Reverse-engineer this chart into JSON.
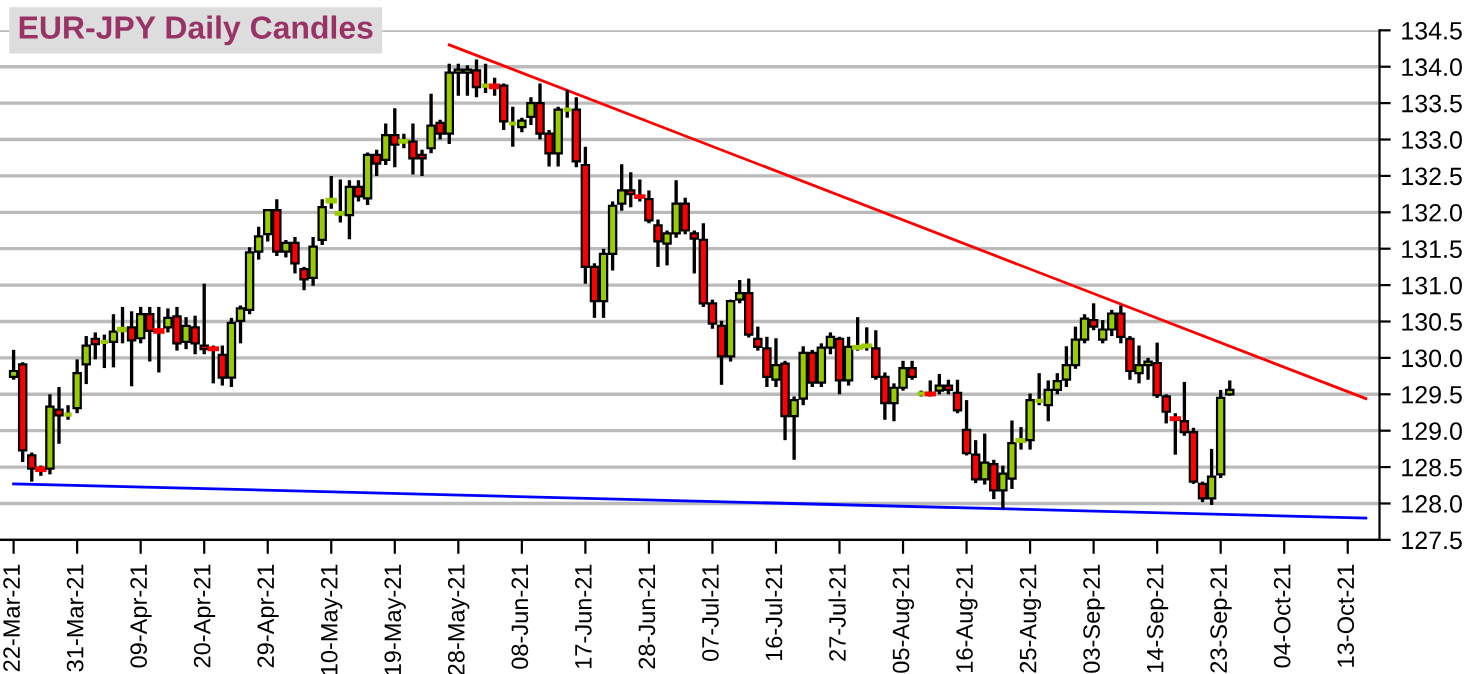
{
  "chart_data": {
    "type": "candlestick",
    "title": "EUR-JPY Daily Candles",
    "categories": [
      "22-Mar-21",
      null,
      null,
      null,
      null,
      null,
      null,
      "31-Mar-21",
      null,
      null,
      null,
      null,
      null,
      null,
      "09-Apr-21",
      null,
      null,
      null,
      null,
      null,
      null,
      "20-Apr-21",
      null,
      null,
      null,
      null,
      null,
      null,
      "29-Apr-21",
      null,
      null,
      null,
      null,
      null,
      null,
      "10-May-21",
      null,
      null,
      null,
      null,
      null,
      null,
      "19-May-21",
      null,
      null,
      null,
      null,
      null,
      null,
      "28-May-21",
      null,
      null,
      null,
      null,
      null,
      null,
      "08-Jun-21",
      null,
      null,
      null,
      null,
      null,
      null,
      "17-Jun-21",
      null,
      null,
      null,
      null,
      null,
      null,
      "28-Jun-21",
      null,
      null,
      null,
      null,
      null,
      null,
      "07-Jul-21",
      null,
      null,
      null,
      null,
      null,
      null,
      "16-Jul-21",
      null,
      null,
      null,
      null,
      null,
      null,
      "27-Jul-21",
      null,
      null,
      null,
      null,
      null,
      null,
      "05-Aug-21",
      null,
      null,
      null,
      null,
      null,
      null,
      "16-Aug-21",
      null,
      null,
      null,
      null,
      null,
      null,
      "25-Aug-21",
      null,
      null,
      null,
      null,
      null,
      null,
      "03-Sep-21",
      null,
      null,
      null,
      null,
      null,
      null,
      "14-Sep-21",
      null,
      null,
      null,
      null,
      null,
      null,
      "23-Sep-21",
      null,
      null,
      null,
      null,
      null,
      null,
      "04-Oct-21",
      null,
      null,
      null,
      null,
      null,
      null,
      "13-Oct-21",
      null,
      null,
      null
    ],
    "ohlc": [
      [
        129.74,
        130.11,
        129.7,
        129.82
      ],
      [
        129.91,
        129.94,
        128.57,
        128.73
      ],
      [
        128.66,
        128.7,
        128.3,
        128.48
      ],
      [
        128.48,
        128.52,
        128.38,
        128.46
      ],
      [
        128.48,
        129.5,
        128.4,
        129.33
      ],
      [
        129.29,
        129.6,
        128.82,
        129.21
      ],
      [
        129.22,
        129.35,
        129.15,
        129.22
      ],
      [
        129.31,
        129.98,
        129.24,
        129.79
      ],
      [
        129.91,
        130.3,
        129.64,
        130.17
      ],
      [
        130.26,
        130.35,
        129.98,
        130.19
      ],
      [
        130.22,
        130.32,
        129.86,
        130.22
      ],
      [
        130.22,
        130.6,
        129.87,
        130.36
      ],
      [
        130.38,
        130.7,
        130.2,
        130.4
      ],
      [
        130.42,
        130.64,
        129.61,
        130.24
      ],
      [
        130.27,
        130.7,
        130.2,
        130.6
      ],
      [
        130.6,
        130.7,
        129.95,
        130.37
      ],
      [
        130.38,
        130.7,
        129.8,
        130.36
      ],
      [
        130.42,
        130.68,
        130.35,
        130.55
      ],
      [
        130.57,
        130.7,
        130.1,
        130.2
      ],
      [
        130.22,
        130.56,
        130.12,
        130.44
      ],
      [
        130.42,
        130.58,
        130.05,
        130.2
      ],
      [
        130.17,
        131.02,
        130.05,
        130.12
      ],
      [
        130.13,
        130.17,
        129.65,
        130.12
      ],
      [
        130.04,
        130.17,
        129.62,
        129.73
      ],
      [
        129.73,
        130.55,
        129.6,
        130.48
      ],
      [
        130.51,
        130.72,
        130.2,
        130.68
      ],
      [
        130.66,
        131.52,
        130.6,
        131.45
      ],
      [
        131.46,
        131.8,
        131.35,
        131.67
      ],
      [
        131.7,
        132.03,
        131.6,
        132.03
      ],
      [
        132.03,
        132.18,
        131.4,
        131.46
      ],
      [
        131.46,
        131.62,
        131.38,
        131.58
      ],
      [
        131.58,
        131.66,
        131.16,
        131.3
      ],
      [
        131.22,
        131.25,
        130.93,
        131.08
      ],
      [
        131.1,
        131.66,
        130.99,
        131.53
      ],
      [
        131.62,
        132.18,
        131.55,
        132.07
      ],
      [
        132.15,
        132.5,
        132.05,
        132.17
      ],
      [
        131.98,
        132.45,
        131.86,
        131.99
      ],
      [
        131.96,
        132.44,
        131.63,
        132.35
      ],
      [
        132.35,
        132.44,
        132.15,
        132.22
      ],
      [
        132.19,
        132.82,
        132.1,
        132.79
      ],
      [
        132.79,
        132.86,
        132.5,
        132.67
      ],
      [
        132.72,
        133.22,
        132.65,
        133.06
      ],
      [
        133.06,
        133.43,
        132.62,
        132.93
      ],
      [
        132.97,
        133.08,
        132.88,
        132.98
      ],
      [
        132.97,
        133.22,
        132.52,
        132.74
      ],
      [
        132.79,
        132.86,
        132.5,
        132.74
      ],
      [
        132.88,
        133.63,
        132.81,
        133.19
      ],
      [
        133.23,
        133.27,
        133.0,
        133.08
      ],
      [
        133.08,
        134.04,
        132.94,
        133.92
      ],
      [
        133.92,
        134.04,
        133.6,
        133.96
      ],
      [
        133.92,
        134.02,
        133.6,
        133.96
      ],
      [
        133.95,
        134.1,
        133.58,
        133.72
      ],
      [
        133.74,
        134.04,
        133.64,
        133.74
      ],
      [
        133.74,
        133.85,
        133.6,
        133.72
      ],
      [
        133.74,
        133.77,
        133.13,
        133.25
      ],
      [
        133.22,
        133.45,
        132.9,
        133.22
      ],
      [
        133.17,
        133.3,
        133.1,
        133.26
      ],
      [
        133.31,
        133.58,
        133.2,
        133.5
      ],
      [
        133.5,
        133.77,
        133.0,
        133.08
      ],
      [
        133.08,
        133.13,
        132.63,
        132.81
      ],
      [
        132.81,
        133.45,
        132.63,
        133.41
      ],
      [
        133.41,
        133.68,
        133.3,
        133.41
      ],
      [
        133.41,
        133.58,
        132.62,
        132.7
      ],
      [
        132.65,
        132.9,
        131.02,
        131.25
      ],
      [
        131.25,
        131.3,
        130.55,
        130.78
      ],
      [
        130.78,
        131.5,
        130.55,
        131.43
      ],
      [
        131.43,
        132.15,
        131.2,
        132.09
      ],
      [
        132.12,
        132.66,
        132.02,
        132.3
      ],
      [
        132.3,
        132.55,
        132.07,
        132.25
      ],
      [
        132.22,
        132.45,
        132.15,
        132.21
      ],
      [
        132.18,
        132.3,
        131.85,
        131.89
      ],
      [
        131.82,
        131.9,
        131.25,
        131.6
      ],
      [
        131.57,
        131.75,
        131.27,
        131.71
      ],
      [
        131.71,
        132.44,
        131.65,
        132.12
      ],
      [
        132.12,
        132.2,
        131.7,
        131.75
      ],
      [
        131.71,
        131.75,
        131.16,
        131.64
      ],
      [
        131.62,
        131.85,
        130.7,
        130.75
      ],
      [
        130.75,
        130.8,
        130.4,
        130.47
      ],
      [
        130.44,
        130.51,
        129.63,
        130.02
      ],
      [
        130.02,
        130.8,
        129.95,
        130.78
      ],
      [
        130.8,
        131.07,
        130.75,
        130.89
      ],
      [
        130.89,
        131.09,
        130.28,
        130.32
      ],
      [
        130.26,
        130.43,
        130.1,
        130.15
      ],
      [
        130.13,
        130.29,
        129.6,
        129.74
      ],
      [
        129.7,
        130.27,
        129.6,
        129.9
      ],
      [
        129.92,
        129.96,
        128.87,
        129.2
      ],
      [
        129.2,
        129.47,
        128.6,
        129.42
      ],
      [
        129.44,
        130.16,
        129.35,
        130.07
      ],
      [
        130.07,
        130.11,
        129.6,
        129.66
      ],
      [
        129.66,
        130.2,
        129.6,
        130.14
      ],
      [
        130.14,
        130.35,
        130.05,
        130.29
      ],
      [
        130.26,
        130.29,
        129.5,
        129.69
      ],
      [
        129.69,
        130.29,
        129.62,
        130.15
      ],
      [
        130.14,
        130.56,
        130.1,
        130.15
      ],
      [
        130.16,
        130.42,
        130.1,
        130.17
      ],
      [
        130.13,
        130.38,
        129.7,
        129.74
      ],
      [
        129.74,
        129.8,
        129.15,
        129.38
      ],
      [
        129.38,
        129.65,
        129.13,
        129.59
      ],
      [
        129.59,
        129.96,
        129.55,
        129.86
      ],
      [
        129.86,
        129.96,
        129.7,
        129.74
      ],
      [
        129.51,
        129.55,
        129.47,
        129.51
      ],
      [
        129.51,
        129.69,
        129.47,
        129.5
      ],
      [
        129.55,
        129.78,
        129.5,
        129.62
      ],
      [
        129.62,
        129.7,
        129.5,
        129.56
      ],
      [
        129.52,
        129.7,
        129.24,
        129.28
      ],
      [
        129.01,
        129.42,
        128.66,
        128.69
      ],
      [
        128.67,
        128.87,
        128.28,
        128.33
      ],
      [
        128.33,
        128.96,
        128.26,
        128.56
      ],
      [
        128.54,
        128.6,
        128.06,
        128.18
      ],
      [
        128.18,
        128.52,
        127.93,
        128.41
      ],
      [
        128.34,
        129.14,
        128.2,
        128.83
      ],
      [
        128.86,
        129.05,
        128.74,
        128.87
      ],
      [
        128.87,
        129.51,
        128.74,
        129.42
      ],
      [
        129.41,
        129.79,
        129.35,
        129.41
      ],
      [
        129.35,
        129.69,
        129.13,
        129.56
      ],
      [
        129.56,
        129.79,
        129.5,
        129.68
      ],
      [
        129.7,
        130.16,
        129.6,
        129.9
      ],
      [
        129.9,
        130.43,
        129.85,
        130.25
      ],
      [
        130.25,
        130.6,
        130.2,
        130.54
      ],
      [
        130.52,
        130.75,
        130.38,
        130.43
      ],
      [
        130.25,
        130.52,
        130.2,
        130.39
      ],
      [
        130.39,
        130.66,
        130.3,
        130.61
      ],
      [
        130.61,
        130.72,
        130.2,
        130.29
      ],
      [
        130.26,
        130.3,
        129.7,
        129.82
      ],
      [
        129.79,
        130.17,
        129.65,
        129.9
      ],
      [
        129.9,
        130.0,
        129.7,
        129.95
      ],
      [
        129.93,
        130.21,
        129.45,
        129.49
      ],
      [
        129.47,
        129.5,
        129.1,
        129.26
      ],
      [
        129.17,
        129.24,
        128.67,
        129.16
      ],
      [
        129.13,
        129.67,
        128.93,
        128.98
      ],
      [
        128.98,
        129.04,
        128.27,
        128.3
      ],
      [
        128.27,
        128.3,
        128.02,
        128.07
      ],
      [
        128.07,
        128.75,
        127.98,
        128.37
      ],
      [
        128.4,
        129.56,
        128.35,
        129.45
      ],
      [
        129.5,
        129.69,
        129.48,
        129.56
      ],
      null,
      null,
      null,
      null,
      null,
      null,
      null,
      null,
      null,
      null,
      null,
      null,
      null,
      null,
      null,
      null
    ],
    "colors": [
      "#99cc00",
      "#ff0000",
      "#ff0000",
      "#ff0000",
      "#99cc00",
      "#ff0000",
      "#99cc00",
      "#99cc00",
      "#99cc00",
      "#ff0000",
      "#99cc00",
      "#99cc00",
      "#99cc00",
      "#ff0000",
      "#99cc00",
      "#ff0000",
      "#ff0000",
      "#99cc00",
      "#ff0000",
      "#99cc00",
      "#ff0000",
      "#ff0000",
      "#ff0000",
      "#ff0000",
      "#99cc00",
      "#99cc00",
      "#99cc00",
      "#99cc00",
      "#99cc00",
      "#ff0000",
      "#99cc00",
      "#ff0000",
      "#ff0000",
      "#99cc00",
      "#99cc00",
      "#99cc00",
      "#99cc00",
      "#99cc00",
      "#ff0000",
      "#99cc00",
      "#ff0000",
      "#99cc00",
      "#ff0000",
      "#99cc00",
      "#ff0000",
      "#ff0000",
      "#99cc00",
      "#ff0000",
      "#99cc00",
      "#99cc00",
      "#99cc00",
      "#ff0000",
      "#99cc00",
      "#ff0000",
      "#ff0000",
      "#99cc00",
      "#99cc00",
      "#99cc00",
      "#ff0000",
      "#ff0000",
      "#99cc00",
      "#99cc00",
      "#ff0000",
      "#ff0000",
      "#ff0000",
      "#99cc00",
      "#99cc00",
      "#99cc00",
      "#ff0000",
      "#ff0000",
      "#ff0000",
      "#ff0000",
      "#99cc00",
      "#99cc00",
      "#ff0000",
      "#ff0000",
      "#ff0000",
      "#ff0000",
      "#ff0000",
      "#99cc00",
      "#99cc00",
      "#ff0000",
      "#ff0000",
      "#ff0000",
      "#99cc00",
      "#ff0000",
      "#99cc00",
      "#99cc00",
      "#ff0000",
      "#99cc00",
      "#99cc00",
      "#ff0000",
      "#99cc00",
      "#99cc00",
      "#99cc00",
      "#ff0000",
      "#ff0000",
      "#99cc00",
      "#99cc00",
      "#ff0000",
      "#99cc00",
      "#ff0000",
      "#99cc00",
      "#ff0000",
      "#ff0000",
      "#ff0000",
      "#ff0000",
      "#99cc00",
      "#ff0000",
      "#99cc00",
      "#99cc00",
      "#99cc00",
      "#99cc00",
      "#99cc00",
      "#99cc00",
      "#99cc00",
      "#99cc00",
      "#99cc00",
      "#99cc00",
      "#ff0000",
      "#99cc00",
      "#99cc00",
      "#ff0000",
      "#ff0000",
      "#99cc00",
      "#99cc00",
      "#ff0000",
      "#ff0000",
      "#ff0000",
      "#ff0000",
      "#ff0000",
      "#ff0000",
      "#99cc00",
      "#99cc00",
      "#99cc00",
      null,
      null,
      null,
      null,
      null,
      null,
      null,
      null,
      null,
      null,
      null,
      null,
      null,
      null,
      null,
      null
    ],
    "series": [
      {
        "type": "line",
        "color": "#ff0000",
        "values": [
          null,
          null,
          null,
          null,
          null,
          null,
          null,
          null,
          null,
          null,
          null,
          null,
          null,
          null,
          null,
          null,
          null,
          null,
          null,
          null,
          null,
          null,
          null,
          null,
          null,
          null,
          null,
          null,
          null,
          null,
          null,
          null,
          null,
          null,
          null,
          null,
          null,
          null,
          null,
          null,
          null,
          null,
          null,
          null,
          null,
          null,
          null,
          null,
          134.3,
          null,
          null,
          null,
          null,
          null,
          null,
          null,
          null,
          null,
          null,
          null,
          null,
          null,
          null,
          null,
          null,
          null,
          null,
          null,
          null,
          null,
          null,
          null,
          null,
          null,
          null,
          null,
          null,
          null,
          null,
          null,
          null,
          null,
          null,
          null,
          null,
          null,
          null,
          null,
          null,
          null,
          null,
          null,
          null,
          null,
          null,
          null,
          null,
          null,
          null,
          null,
          null,
          null,
          null,
          null,
          null,
          null,
          null,
          null,
          null,
          null,
          null,
          null,
          null,
          null,
          null,
          null,
          null,
          null,
          null,
          null,
          null,
          null,
          null,
          null,
          null,
          null,
          null,
          null,
          null,
          null,
          null,
          null,
          null,
          null,
          null,
          null,
          null,
          null,
          null,
          null,
          null,
          null,
          null,
          null,
          null,
          null,
          null,
          null,
          null,
          129.44,
          null
        ]
      },
      {
        "type": "line",
        "color": "#0000ff",
        "values": [
          128.27,
          null,
          null,
          null,
          null,
          null,
          null,
          null,
          null,
          null,
          null,
          null,
          null,
          null,
          null,
          null,
          null,
          null,
          null,
          null,
          null,
          null,
          null,
          null,
          null,
          null,
          null,
          null,
          null,
          null,
          null,
          null,
          null,
          null,
          null,
          null,
          null,
          null,
          null,
          null,
          null,
          null,
          null,
          null,
          null,
          null,
          null,
          null,
          null,
          null,
          null,
          null,
          null,
          null,
          null,
          null,
          null,
          null,
          null,
          null,
          null,
          null,
          null,
          null,
          null,
          null,
          null,
          null,
          null,
          null,
          null,
          null,
          null,
          null,
          null,
          null,
          null,
          null,
          null,
          null,
          null,
          null,
          null,
          null,
          null,
          null,
          null,
          null,
          null,
          null,
          null,
          null,
          null,
          null,
          null,
          null,
          null,
          null,
          null,
          null,
          null,
          null,
          null,
          null,
          null,
          null,
          null,
          null,
          null,
          null,
          null,
          null,
          null,
          null,
          null,
          null,
          null,
          null,
          null,
          null,
          null,
          null,
          null,
          null,
          null,
          null,
          null,
          null,
          null,
          null,
          null,
          null,
          null,
          null,
          null,
          null,
          null,
          null,
          null,
          null,
          null,
          null,
          null,
          null,
          null,
          null,
          null,
          null,
          null,
          127.8,
          null
        ]
      }
    ],
    "ylim": [
      127.5,
      134.5
    ],
    "yticks": [
      127.5,
      {
        "value": 128,
        "label": "128.0"
      },
      128.5,
      {
        "value": 129,
        "label": "129.0"
      },
      129.5,
      {
        "value": 130,
        "label": "130.0"
      },
      130.5,
      {
        "value": 131,
        "label": "131.0"
      },
      131.5,
      {
        "value": 132,
        "label": "132.0"
      },
      132.5,
      {
        "value": 133,
        "label": "133.0"
      },
      133.5,
      {
        "value": 134,
        "label": "134.0"
      },
      134.5
    ],
    "grid": "y"
  }
}
